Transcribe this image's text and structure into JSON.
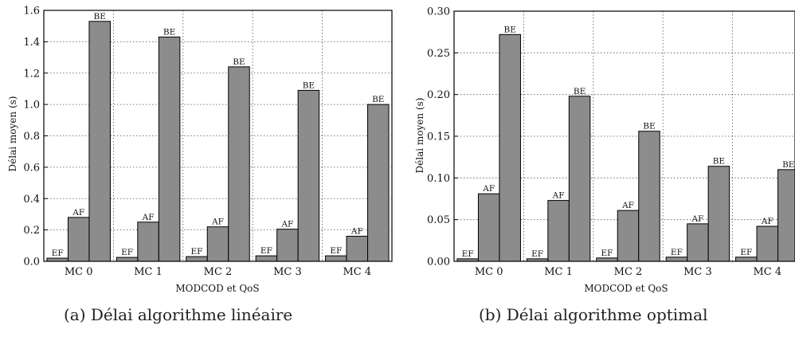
{
  "chart_data": [
    {
      "type": "bar",
      "caption": "(a) Délai algorithme linéaire",
      "xlabel": "MODCOD et QoS",
      "ylabel": "Délai moyen (s)",
      "ylim": [
        0,
        1.6
      ],
      "yticks": [
        "0.0",
        "0.2",
        "0.4",
        "0.6",
        "0.8",
        "1.0",
        "1.2",
        "1.4",
        "1.6"
      ],
      "grid": true,
      "categories": [
        "MC 0",
        "MC 1",
        "MC 2",
        "MC 3",
        "MC 4"
      ],
      "series": [
        {
          "name": "EF",
          "values": [
            0.02,
            0.025,
            0.03,
            0.035,
            0.035
          ]
        },
        {
          "name": "AF",
          "values": [
            0.28,
            0.25,
            0.22,
            0.205,
            0.16
          ]
        },
        {
          "name": "BE",
          "values": [
            1.53,
            1.43,
            1.24,
            1.09,
            1.0
          ]
        }
      ],
      "bar_color": "#8c8c8c"
    },
    {
      "type": "bar",
      "caption": "(b) Délai algorithme optimal",
      "xlabel": "MODCOD et QoS",
      "ylabel": "Délai moyen (s)",
      "ylim": [
        0,
        0.3
      ],
      "yticks": [
        "0.00",
        "0.05",
        "0.10",
        "0.15",
        "0.20",
        "0.25",
        "0.30"
      ],
      "grid": true,
      "categories": [
        "MC 0",
        "MC 1",
        "MC 2",
        "MC 3",
        "MC 4"
      ],
      "series": [
        {
          "name": "EF",
          "values": [
            0.003,
            0.003,
            0.004,
            0.005,
            0.005
          ]
        },
        {
          "name": "AF",
          "values": [
            0.081,
            0.073,
            0.061,
            0.045,
            0.042
          ]
        },
        {
          "name": "BE",
          "values": [
            0.272,
            0.198,
            0.156,
            0.114,
            0.11
          ]
        }
      ],
      "bar_color": "#8c8c8c"
    }
  ]
}
